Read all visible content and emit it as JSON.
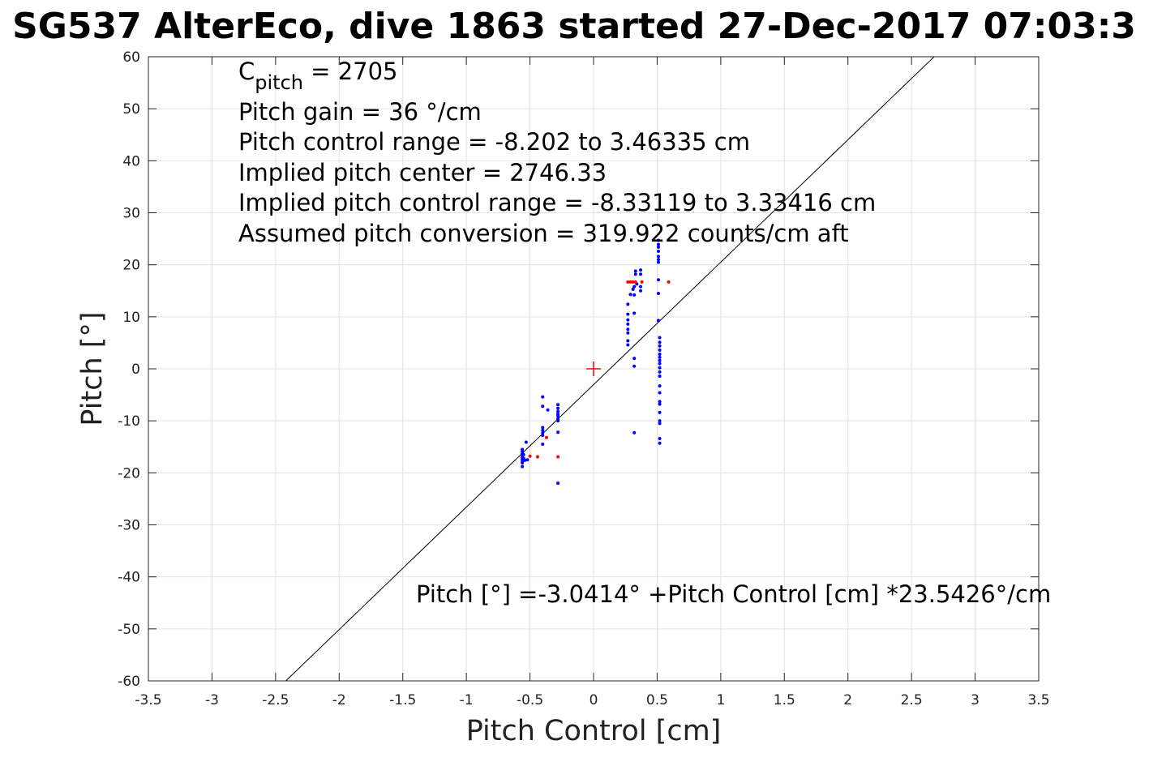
{
  "chart_data": {
    "type": "scatter",
    "title": "SG537 AlterEco, dive 1863 started 27-Dec-2017 07:03:3",
    "xlabel": "Pitch Control [cm]",
    "ylabel": "Pitch [°]",
    "xlim": [
      -3.5,
      3.5
    ],
    "ylim": [
      -60,
      60
    ],
    "xticks": [
      -3.5,
      -3,
      -2.5,
      -2,
      -1.5,
      -1,
      -0.5,
      0,
      0.5,
      1,
      1.5,
      2,
      2.5,
      3,
      3.5
    ],
    "xtick_labels": [
      "-3.5",
      "-3",
      "-2.5",
      "-2",
      "-1.5",
      "-1",
      "-0.5",
      "0",
      "0.5",
      "1",
      "1.5",
      "2",
      "2.5",
      "3",
      "3.5"
    ],
    "yticks": [
      -60,
      -50,
      -40,
      -30,
      -20,
      -10,
      0,
      10,
      20,
      30,
      40,
      50,
      60
    ],
    "ytick_labels": [
      "-60",
      "-50",
      "-40",
      "-30",
      "-20",
      "-10",
      "0",
      "10",
      "20",
      "30",
      "40",
      "50",
      "60"
    ],
    "grid": true,
    "annotations": {
      "cpitch": {
        "base": "C",
        "sub": "pitch",
        "rest": " = 2705"
      },
      "lines": [
        "Pitch gain = 36 °/cm",
        "Pitch control range = -8.202 to 3.46335 cm",
        "Implied pitch center = 2746.33",
        "Implied pitch control range = -8.33119 to 3.33416 cm",
        "Assumed pitch conversion = 319.922 counts/cm aft"
      ],
      "fit_text": "Pitch [°] =-3.0414° +Pitch Control [cm] *23.5426°/cm"
    },
    "fit_line": {
      "intercept": -3.0414,
      "slope": 23.5426,
      "color": "#000000"
    },
    "center_marker": {
      "x": 0,
      "y": 0,
      "color": "#ff0000"
    },
    "series": [
      {
        "color": "#0000ff",
        "points": [
          [
            -0.56,
            -15.5
          ],
          [
            -0.56,
            -15.9
          ],
          [
            -0.56,
            -16.3
          ],
          [
            -0.56,
            -16.6
          ],
          [
            -0.56,
            -17.0
          ],
          [
            -0.56,
            -17.3
          ],
          [
            -0.56,
            -17.7
          ],
          [
            -0.56,
            -18.1
          ],
          [
            -0.56,
            -18.8
          ],
          [
            -0.55,
            -16.5
          ],
          [
            -0.55,
            -17.2
          ],
          [
            -0.54,
            -17.6
          ],
          [
            -0.53,
            -14.1
          ],
          [
            -0.52,
            -17.5
          ],
          [
            -0.4,
            -5.4
          ],
          [
            -0.4,
            -7.2
          ],
          [
            -0.4,
            -11.3
          ],
          [
            -0.4,
            -11.8
          ],
          [
            -0.4,
            -12.3
          ],
          [
            -0.4,
            -12.8
          ],
          [
            -0.4,
            -14.5
          ],
          [
            -0.36,
            -7.9
          ],
          [
            -0.28,
            -6.9
          ],
          [
            -0.28,
            -7.6
          ],
          [
            -0.28,
            -8.2
          ],
          [
            -0.28,
            -8.7
          ],
          [
            -0.28,
            -9.1
          ],
          [
            -0.28,
            -9.6
          ],
          [
            -0.28,
            -10.0
          ],
          [
            -0.28,
            -12.2
          ],
          [
            -0.28,
            -22.0
          ],
          [
            0.27,
            12.4
          ],
          [
            0.27,
            10.5
          ],
          [
            0.27,
            9.4
          ],
          [
            0.27,
            8.6
          ],
          [
            0.27,
            7.6
          ],
          [
            0.27,
            6.9
          ],
          [
            0.27,
            5.4
          ],
          [
            0.27,
            4.6
          ],
          [
            0.29,
            14.3
          ],
          [
            0.31,
            15.3
          ],
          [
            0.32,
            15.8
          ],
          [
            0.32,
            14.2
          ],
          [
            0.32,
            10.7
          ],
          [
            0.32,
            2.0
          ],
          [
            0.32,
            0.5
          ],
          [
            0.32,
            -12.3
          ],
          [
            0.33,
            18.2
          ],
          [
            0.33,
            18.8
          ],
          [
            0.34,
            16.3
          ],
          [
            0.37,
            19.0
          ],
          [
            0.37,
            18.2
          ],
          [
            0.37,
            15.8
          ],
          [
            0.37,
            15.0
          ],
          [
            0.51,
            24.7
          ],
          [
            0.51,
            23.9
          ],
          [
            0.51,
            23.4
          ],
          [
            0.51,
            22.6
          ],
          [
            0.51,
            21.6
          ],
          [
            0.51,
            21.0
          ],
          [
            0.51,
            20.5
          ],
          [
            0.51,
            17.1
          ],
          [
            0.51,
            14.5
          ],
          [
            0.51,
            9.3
          ],
          [
            0.52,
            6.0
          ],
          [
            0.52,
            5.1
          ],
          [
            0.52,
            4.4
          ],
          [
            0.52,
            3.6
          ],
          [
            0.52,
            2.8
          ],
          [
            0.52,
            2.2
          ],
          [
            0.52,
            1.6
          ],
          [
            0.52,
            1.0
          ],
          [
            0.52,
            0.2
          ],
          [
            0.52,
            -0.6
          ],
          [
            0.52,
            -1.4
          ],
          [
            0.52,
            -3.3
          ],
          [
            0.52,
            -4.6
          ],
          [
            0.52,
            -6.3
          ],
          [
            0.52,
            -6.8
          ],
          [
            0.52,
            -8.4
          ],
          [
            0.52,
            -10.0
          ],
          [
            0.52,
            -10.5
          ],
          [
            0.52,
            -13.4
          ],
          [
            0.52,
            -14.3
          ]
        ]
      },
      {
        "color": "#ff0000",
        "points": [
          [
            -0.5,
            -16.8
          ],
          [
            -0.44,
            -16.9
          ],
          [
            -0.37,
            -13.2
          ],
          [
            -0.28,
            -16.9
          ],
          [
            0.27,
            16.7
          ],
          [
            0.29,
            16.7
          ],
          [
            0.31,
            16.7
          ],
          [
            0.33,
            16.7
          ],
          [
            0.38,
            16.7
          ],
          [
            0.59,
            16.7
          ]
        ]
      }
    ]
  }
}
